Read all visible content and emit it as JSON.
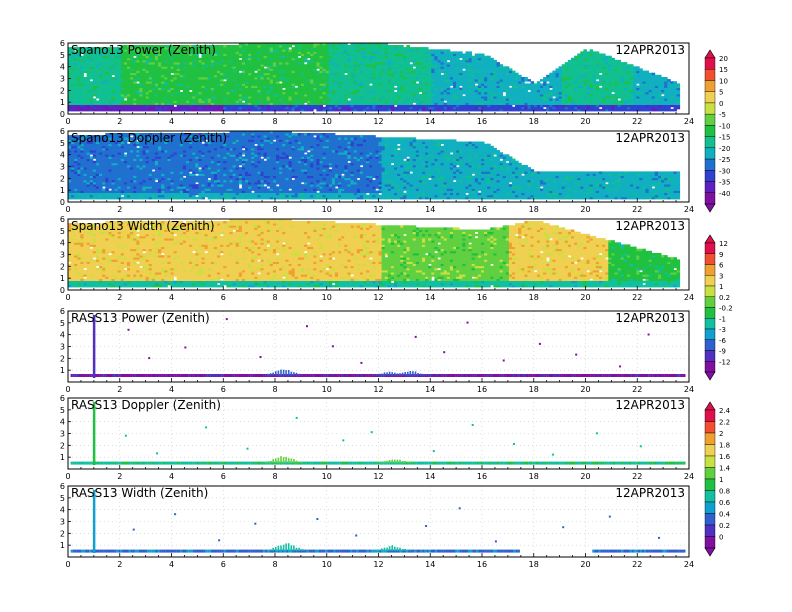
{
  "chart_data": [
    {
      "type": "heatmap",
      "title": "Spano13 Power (Zenith)",
      "date": "12APR2013",
      "xlim": [
        0,
        24
      ],
      "ylim": [
        0,
        6
      ],
      "x_ticks": [
        "0",
        "2",
        "4",
        "6",
        "8",
        "10",
        "12",
        "14",
        "16",
        "18",
        "20",
        "22",
        "24"
      ],
      "y_ticks": [
        "0",
        "1",
        "2",
        "3",
        "4",
        "5",
        "6"
      ],
      "colorbar": {
        "group": "power",
        "labels": [
          "20",
          "15",
          "10",
          "5",
          "0",
          "-5",
          "-10",
          "-15",
          "-20",
          "-25",
          "-30",
          "-35",
          "-40"
        ]
      },
      "profile": [
        {
          "hour": 0,
          "top_km": 5.6,
          "mid": "-15",
          "low": "-35"
        },
        {
          "hour": 4,
          "top_km": 5.7,
          "mid": "-10",
          "low": "-35"
        },
        {
          "hour": 8,
          "top_km": 5.9,
          "mid": "-10",
          "low": "-30"
        },
        {
          "hour": 12,
          "top_km": 5.9,
          "mid": "-15",
          "low": "-30"
        },
        {
          "hour": 16,
          "top_km": 5.0,
          "mid": "-20",
          "low": "-30"
        },
        {
          "hour": 18,
          "top_km": 2.5,
          "mid": "-20",
          "low": "-30"
        },
        {
          "hour": 20,
          "top_km": 5.5,
          "mid": "-15",
          "low": "-30"
        },
        {
          "hour": 23.6,
          "top_km": 2.5,
          "mid": "-20",
          "low": "-30"
        }
      ]
    },
    {
      "type": "heatmap",
      "title": "Spano13 Doppler (Zenith)",
      "date": "12APR2013",
      "xlim": [
        0,
        24
      ],
      "ylim": [
        0,
        6
      ],
      "x_ticks": [
        "0",
        "2",
        "4",
        "6",
        "8",
        "10",
        "12",
        "14",
        "16",
        "18",
        "20",
        "22",
        "24"
      ],
      "y_ticks": [
        "0",
        "1",
        "2",
        "3",
        "4",
        "5",
        "6"
      ],
      "colorbar": {
        "group": "power",
        "labels": [
          "20",
          "15",
          "10",
          "5",
          "0",
          "-5",
          "-10",
          "-15",
          "-20",
          "-25",
          "-30",
          "-35",
          "-40"
        ]
      },
      "profile": [
        {
          "hour": 0,
          "top_km": 5.6,
          "mid": "-25",
          "low": "-20"
        },
        {
          "hour": 8,
          "top_km": 5.9,
          "mid": "-25",
          "low": "-20"
        },
        {
          "hour": 16,
          "top_km": 5.0,
          "mid": "-20",
          "low": "-20"
        },
        {
          "hour": 18,
          "top_km": 2.5,
          "mid": "-20",
          "low": "-20"
        },
        {
          "hour": 23.6,
          "top_km": 2.5,
          "mid": "-20",
          "low": "-20"
        }
      ]
    },
    {
      "type": "heatmap",
      "title": "Spano13 Width (Zenith)",
      "date": "12APR2013",
      "xlim": [
        0,
        24
      ],
      "ylim": [
        0,
        6
      ],
      "x_ticks": [
        "0",
        "2",
        "4",
        "6",
        "8",
        "10",
        "12",
        "14",
        "16",
        "18",
        "20",
        "22",
        "24"
      ],
      "y_ticks": [
        "0",
        "1",
        "2",
        "3",
        "4",
        "5",
        "6"
      ],
      "colorbar": {
        "group": "width",
        "labels": [
          "12",
          "9",
          "6",
          "3",
          "1",
          "0.2",
          "-0.2",
          "-1",
          "-3",
          "-6",
          "-9",
          "-12"
        ]
      },
      "profile": [
        {
          "hour": 0,
          "top_km": 5.6,
          "mid": "3",
          "low": "-1"
        },
        {
          "hour": 8,
          "top_km": 5.9,
          "mid": "3",
          "low": "-1"
        },
        {
          "hour": 16,
          "top_km": 5.0,
          "mid": "0.2",
          "low": "-1"
        },
        {
          "hour": 18,
          "top_km": 5.8,
          "mid": "3",
          "low": "-1"
        },
        {
          "hour": 23.6,
          "top_km": 2.5,
          "mid": "-0.2",
          "low": "-1"
        }
      ]
    },
    {
      "type": "scatter",
      "title": "RASS13 Power (Zenith)",
      "date": "12APR2013",
      "xlim": [
        0,
        24
      ],
      "ylim": [
        0,
        6
      ],
      "x_ticks": [
        "0",
        "2",
        "4",
        "6",
        "8",
        "10",
        "12",
        "14",
        "16",
        "18",
        "20",
        "22",
        "24"
      ],
      "y_ticks": [
        "1",
        "2",
        "3",
        "4",
        "5",
        "6"
      ],
      "colorbar": {
        "group": "width",
        "labels": [
          "12",
          "9",
          "6",
          "3",
          "1",
          "0.2",
          "-0.2",
          "-1",
          "-3",
          "-6",
          "-9",
          "-12"
        ]
      },
      "band_km": 0.55,
      "band_level": "-12",
      "enhanced": [
        {
          "hour": 8.3,
          "top_km": 1.2
        },
        {
          "hour": 12.4,
          "top_km": 0.9
        },
        {
          "hour": 13.2,
          "top_km": 1.0
        }
      ],
      "column_hour": 1.0,
      "points": [
        [
          2.3,
          4.5
        ],
        [
          3.1,
          2.1
        ],
        [
          4.5,
          3.0
        ],
        [
          6.1,
          5.4
        ],
        [
          7.4,
          2.2
        ],
        [
          9.2,
          4.8
        ],
        [
          10.2,
          3.1
        ],
        [
          11.3,
          1.7
        ],
        [
          13.4,
          3.9
        ],
        [
          14.5,
          2.6
        ],
        [
          15.4,
          5.1
        ],
        [
          16.8,
          1.9
        ],
        [
          18.2,
          3.3
        ],
        [
          19.6,
          2.4
        ],
        [
          21.3,
          1.4
        ],
        [
          22.4,
          4.1
        ]
      ]
    },
    {
      "type": "scatter",
      "title": "RASS13 Doppler (Zenith)",
      "date": "12APR2013",
      "xlim": [
        0,
        24
      ],
      "ylim": [
        0,
        6
      ],
      "x_ticks": [
        "0",
        "2",
        "4",
        "6",
        "8",
        "10",
        "12",
        "14",
        "16",
        "18",
        "20",
        "22",
        "24"
      ],
      "y_ticks": [
        "1",
        "2",
        "3",
        "4",
        "5",
        "6"
      ],
      "colorbar": {
        "group": "rass",
        "labels": [
          "2.4",
          "2.2",
          "2",
          "1.8",
          "1.6",
          "1.4",
          "1",
          "0.8",
          "0.6",
          "0.4",
          "0.2",
          "0"
        ]
      },
      "band_km": 0.5,
      "band_level": "0.8",
      "enhanced": [
        {
          "hour": 8.3,
          "top_km": 1.2
        },
        {
          "hour": 12.6,
          "top_km": 0.9
        }
      ],
      "column_hour": 1.0,
      "points": [
        [
          2.2,
          2.9
        ],
        [
          3.4,
          1.4
        ],
        [
          5.3,
          3.6
        ],
        [
          6.9,
          1.8
        ],
        [
          8.8,
          4.4
        ],
        [
          10.6,
          2.5
        ],
        [
          11.7,
          3.2
        ],
        [
          14.1,
          1.6
        ],
        [
          15.6,
          3.8
        ],
        [
          17.2,
          2.2
        ],
        [
          18.7,
          1.3
        ],
        [
          20.4,
          3.1
        ],
        [
          22.1,
          2.0
        ]
      ]
    },
    {
      "type": "scatter",
      "title": "RASS13 Width (Zenith)",
      "date": "12APR2013",
      "xlim": [
        0,
        24
      ],
      "ylim": [
        0,
        6
      ],
      "x_ticks": [
        "0",
        "2",
        "4",
        "6",
        "8",
        "10",
        "12",
        "14",
        "16",
        "18",
        "20",
        "22",
        "24"
      ],
      "y_ticks": [
        "1",
        "2",
        "3",
        "4",
        "5",
        "6"
      ],
      "colorbar": {
        "group": "rass",
        "labels": [
          "2.4",
          "2.2",
          "2",
          "1.8",
          "1.6",
          "1.4",
          "1",
          "0.8",
          "0.6",
          "0.4",
          "0.2",
          "0"
        ]
      },
      "band_km": 0.5,
      "band_level": "0.4",
      "enhanced": [
        {
          "hour": 8.4,
          "top_km": 1.3
        },
        {
          "hour": 12.5,
          "top_km": 1.0
        }
      ],
      "column_hour": 1.0,
      "points": [
        [
          2.5,
          2.4
        ],
        [
          4.1,
          3.7
        ],
        [
          5.8,
          1.5
        ],
        [
          7.2,
          2.9
        ],
        [
          9.6,
          3.3
        ],
        [
          11.1,
          1.9
        ],
        [
          13.8,
          2.7
        ],
        [
          15.1,
          4.2
        ],
        [
          16.5,
          1.4
        ],
        [
          19.1,
          2.6
        ],
        [
          20.9,
          3.5
        ],
        [
          22.8,
          1.7
        ]
      ]
    }
  ],
  "colorbars": {
    "power": {
      "labels": [
        "20",
        "15",
        "10",
        "5",
        "0",
        "-5",
        "-10",
        "-15",
        "-20",
        "-25",
        "-30",
        "-35",
        "-40"
      ],
      "colors": [
        "#e0104a",
        "#f05030",
        "#f0a030",
        "#f0d050",
        "#c8e040",
        "#60d040",
        "#20c040",
        "#10c090",
        "#10b0c0",
        "#2070d0",
        "#3040d0",
        "#6020c0",
        "#8010a0"
      ]
    },
    "width": {
      "labels": [
        "12",
        "9",
        "6",
        "3",
        "1",
        "0.2",
        "-0.2",
        "-1",
        "-3",
        "-6",
        "-9",
        "-12"
      ],
      "colors": [
        "#e0104a",
        "#f05030",
        "#f0a030",
        "#f0d050",
        "#c8e040",
        "#60d040",
        "#20c040",
        "#10c0a0",
        "#10a0d0",
        "#3060d0",
        "#5030c0",
        "#8010a0"
      ]
    },
    "rass": {
      "labels": [
        "2.4",
        "2.2",
        "2",
        "1.8",
        "1.6",
        "1.4",
        "1",
        "0.8",
        "0.6",
        "0.4",
        "0.2",
        "0"
      ],
      "colors": [
        "#e0104a",
        "#f05030",
        "#f0a030",
        "#f0d050",
        "#c8e040",
        "#60d040",
        "#20c040",
        "#10c0a0",
        "#10a0d0",
        "#3060d0",
        "#5030c0",
        "#8010a0"
      ]
    }
  }
}
